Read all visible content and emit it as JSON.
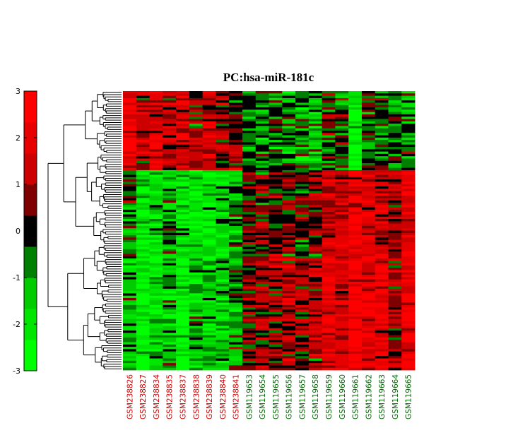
{
  "chart_data": {
    "type": "heatmap",
    "title": "PC:hsa-miR-181c",
    "colorbar": {
      "ticks": [
        "3",
        "2",
        "1",
        "0",
        "-1",
        "-2",
        "-3"
      ],
      "range": [
        -3,
        3
      ],
      "colors": [
        "#00ff00",
        "#00e600",
        "#00cc00",
        "#007f00",
        "#000000",
        "#7f0000",
        "#cc0000",
        "#e60000",
        "#ff0000"
      ]
    },
    "dendrogram": "left",
    "column_groups": [
      {
        "color": "#cc0000",
        "labels": [
          "GSM238826",
          "GSM238827",
          "GSM238834",
          "GSM238835",
          "GSM238837",
          "GSM238838",
          "GSM238839",
          "GSM238840",
          "GSM238841"
        ]
      },
      {
        "color": "#006600",
        "labels": [
          "GSM119653",
          "GSM119654",
          "GSM119655",
          "GSM119656",
          "GSM119657",
          "GSM119658",
          "GSM119659",
          "GSM119660",
          "GSM119661",
          "GSM119662",
          "GSM119663",
          "GSM119664",
          "GSM119665"
        ]
      }
    ],
    "columns": [
      "GSM238826",
      "GSM238827",
      "GSM238834",
      "GSM238835",
      "GSM238837",
      "GSM238838",
      "GSM238839",
      "GSM238840",
      "GSM238841",
      "GSM119653",
      "GSM119654",
      "GSM119655",
      "GSM119656",
      "GSM119657",
      "GSM119658",
      "GSM119659",
      "GSM119660",
      "GSM119661",
      "GSM119662",
      "GSM119663",
      "GSM119664",
      "GSM119665"
    ],
    "row_band_profiles": [
      {
        "rows": "top",
        "values": [
          2.2,
          1.2,
          1.8,
          1.4,
          1.9,
          0.9,
          1.6,
          1.0,
          0.6,
          -0.6,
          -0.9,
          -0.5,
          -0.9,
          -0.7,
          -1.0,
          -0.4,
          -0.3,
          -2.6,
          -0.2,
          -0.6,
          -0.6,
          -0.7
        ]
      },
      {
        "rows": "middle",
        "values": [
          -0.6,
          -2.2,
          -1.6,
          -1.0,
          -1.9,
          -1.9,
          -2.0,
          -1.6,
          -0.9,
          0.4,
          0.5,
          0.4,
          0.8,
          0.3,
          0.6,
          1.6,
          1.4,
          2.1,
          1.8,
          1.5,
          0.9,
          1.9
        ]
      },
      {
        "rows": "bottom",
        "values": [
          -1.3,
          -2.5,
          -1.7,
          -1.2,
          -2.6,
          -1.2,
          -1.5,
          -1.3,
          -0.8,
          0.5,
          0.7,
          0.9,
          1.2,
          0.6,
          1.0,
          1.9,
          1.6,
          2.6,
          2.1,
          1.9,
          0.8,
          2.4
        ]
      }
    ]
  }
}
